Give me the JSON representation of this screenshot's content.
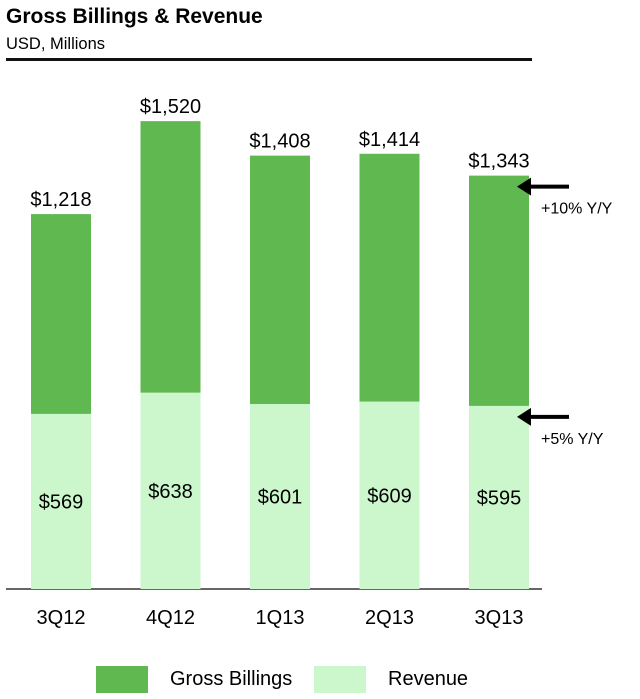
{
  "title": "Gross Billings & Revenue",
  "subtitle": "USD, Millions",
  "colors": {
    "billings": "#5fb850",
    "revenue": "#ccf7cc",
    "axis": "#333333",
    "text": "#000000"
  },
  "chart_data": {
    "type": "bar",
    "stacking": "overlay",
    "title": "Gross Billings & Revenue",
    "subtitle": "USD, Millions",
    "categories": [
      "3Q12",
      "4Q12",
      "1Q13",
      "2Q13",
      "3Q13"
    ],
    "series": [
      {
        "name": "Gross Billings",
        "values": [
          1218,
          1520,
          1408,
          1414,
          1343
        ],
        "labels": [
          "$1,218",
          "$1,520",
          "$1,408",
          "$1,414",
          "$1,343"
        ]
      },
      {
        "name": "Revenue",
        "values": [
          569,
          638,
          601,
          609,
          595
        ],
        "labels": [
          "$569",
          "$638",
          "$601",
          "$609",
          "$595"
        ]
      }
    ],
    "ylim": [
      0,
      1600
    ],
    "xlabel": "",
    "ylabel": "",
    "grid": false,
    "legend_position": "bottom",
    "annotations": [
      {
        "text": "+10% Y/Y",
        "series": "Gross Billings",
        "category": "3Q13"
      },
      {
        "text": "+5% Y/Y",
        "series": "Revenue",
        "category": "3Q13"
      }
    ]
  }
}
